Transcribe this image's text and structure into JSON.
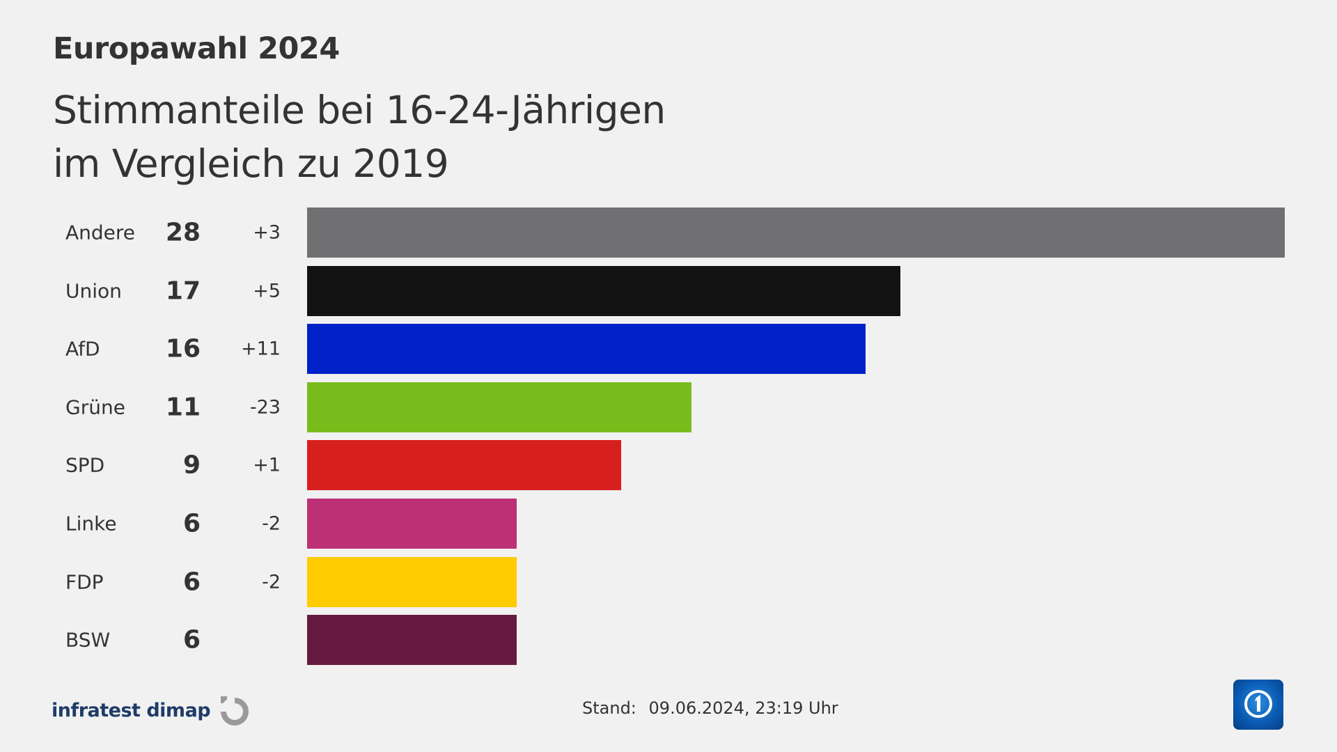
{
  "header": {
    "supertitle": "Europawahl 2024",
    "title_line1": "Stimmanteile bei 16-24-Jährigen",
    "title_line2": "im Vergleich zu 2019"
  },
  "chart_data": {
    "type": "bar",
    "orientation": "horizontal",
    "categories": [
      "Andere",
      "Union",
      "AfD",
      "Grüne",
      "SPD",
      "Linke",
      "FDP",
      "BSW"
    ],
    "values": [
      28,
      17,
      16,
      11,
      9,
      6,
      6,
      6
    ],
    "value_labels": [
      "28",
      "17",
      "16",
      "11",
      "9",
      "6",
      "6",
      "6"
    ],
    "diff_labels": [
      "+3",
      "+5",
      "+11",
      "-23",
      "+1",
      "-2",
      "-2",
      ""
    ],
    "diffs": [
      3,
      5,
      11,
      -23,
      1,
      -2,
      -2,
      null
    ],
    "colors": [
      "#707072",
      "#121212",
      "#0021c8",
      "#78bc1b",
      "#d71f1d",
      "#bd3076",
      "#ffcc00",
      "#661a40"
    ],
    "xlim": [
      0,
      28
    ],
    "grid": false,
    "title": "Stimmanteile bei 16-24-Jährigen im Vergleich zu 2019"
  },
  "footer": {
    "brand": "infratest dimap",
    "stand_label": "Stand:",
    "stand_value": "09.06.2024, 23:19 Uhr",
    "ard_icon": "ard-1-logo-icon",
    "brand_icon": "infratest-dimap-logo-icon"
  }
}
